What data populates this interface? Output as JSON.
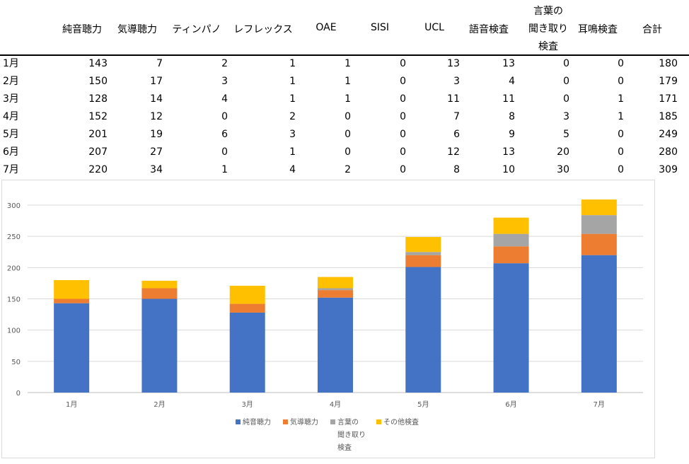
{
  "table": {
    "headers": [
      {
        "label": "純音聴力"
      },
      {
        "label": "気導聴力"
      },
      {
        "label": "ティンパノ"
      },
      {
        "label": "レフレックス"
      },
      {
        "label": "OAE"
      },
      {
        "label": "SISI"
      },
      {
        "label": "UCL"
      },
      {
        "label": "語音検査"
      },
      {
        "label": "言葉の",
        "label2": "聞き取り",
        "label3": "検査"
      },
      {
        "label": "耳鳴検査"
      },
      {
        "label": "合計"
      }
    ],
    "rows": [
      {
        "month": "1月",
        "values": [
          "143",
          "7",
          "2",
          "1",
          "1",
          "0",
          "13",
          "13",
          "0",
          "0",
          "180"
        ]
      },
      {
        "month": "2月",
        "values": [
          "150",
          "17",
          "3",
          "1",
          "1",
          "0",
          "3",
          "4",
          "0",
          "0",
          "179"
        ]
      },
      {
        "month": "3月",
        "values": [
          "128",
          "14",
          "4",
          "1",
          "1",
          "0",
          "11",
          "11",
          "0",
          "1",
          "171"
        ]
      },
      {
        "month": "4月",
        "values": [
          "152",
          "12",
          "0",
          "2",
          "0",
          "0",
          "7",
          "8",
          "3",
          "1",
          "185"
        ]
      },
      {
        "month": "5月",
        "values": [
          "201",
          "19",
          "6",
          "3",
          "0",
          "0",
          "6",
          "9",
          "5",
          "0",
          "249"
        ]
      },
      {
        "month": "6月",
        "values": [
          "207",
          "27",
          "0",
          "1",
          "0",
          "0",
          "12",
          "13",
          "20",
          "0",
          "280"
        ]
      },
      {
        "month": "7月",
        "values": [
          "220",
          "34",
          "1",
          "4",
          "2",
          "0",
          "8",
          "10",
          "30",
          "0",
          "309"
        ]
      }
    ]
  },
  "chart_data": {
    "type": "bar",
    "stacked": true,
    "title": "",
    "xlabel": "",
    "ylabel": "",
    "categories": [
      "1月",
      "2月",
      "3月",
      "4月",
      "5月",
      "6月",
      "7月"
    ],
    "yticks": [
      "0",
      "50",
      "100",
      "150",
      "200",
      "250",
      "300"
    ],
    "ylim": [
      0,
      300
    ],
    "grid": true,
    "legend_position": "bottom",
    "series": [
      {
        "name": "純音聴力",
        "color": "#4472c4",
        "values": [
          143,
          150,
          128,
          152,
          201,
          207,
          220
        ]
      },
      {
        "name": "気導聴力",
        "color": "#ed7d31",
        "values": [
          7,
          17,
          14,
          12,
          19,
          27,
          34
        ]
      },
      {
        "name": "言葉の聞き取り検査",
        "legend_lines": [
          "言葉の",
          "聞き取り",
          "検査"
        ],
        "color": "#a5a5a5",
        "values": [
          0,
          0,
          0,
          3,
          5,
          20,
          30
        ]
      },
      {
        "name": "その他検査",
        "color": "#ffc000",
        "values": [
          30,
          12,
          29,
          18,
          24,
          26,
          25
        ]
      }
    ]
  }
}
